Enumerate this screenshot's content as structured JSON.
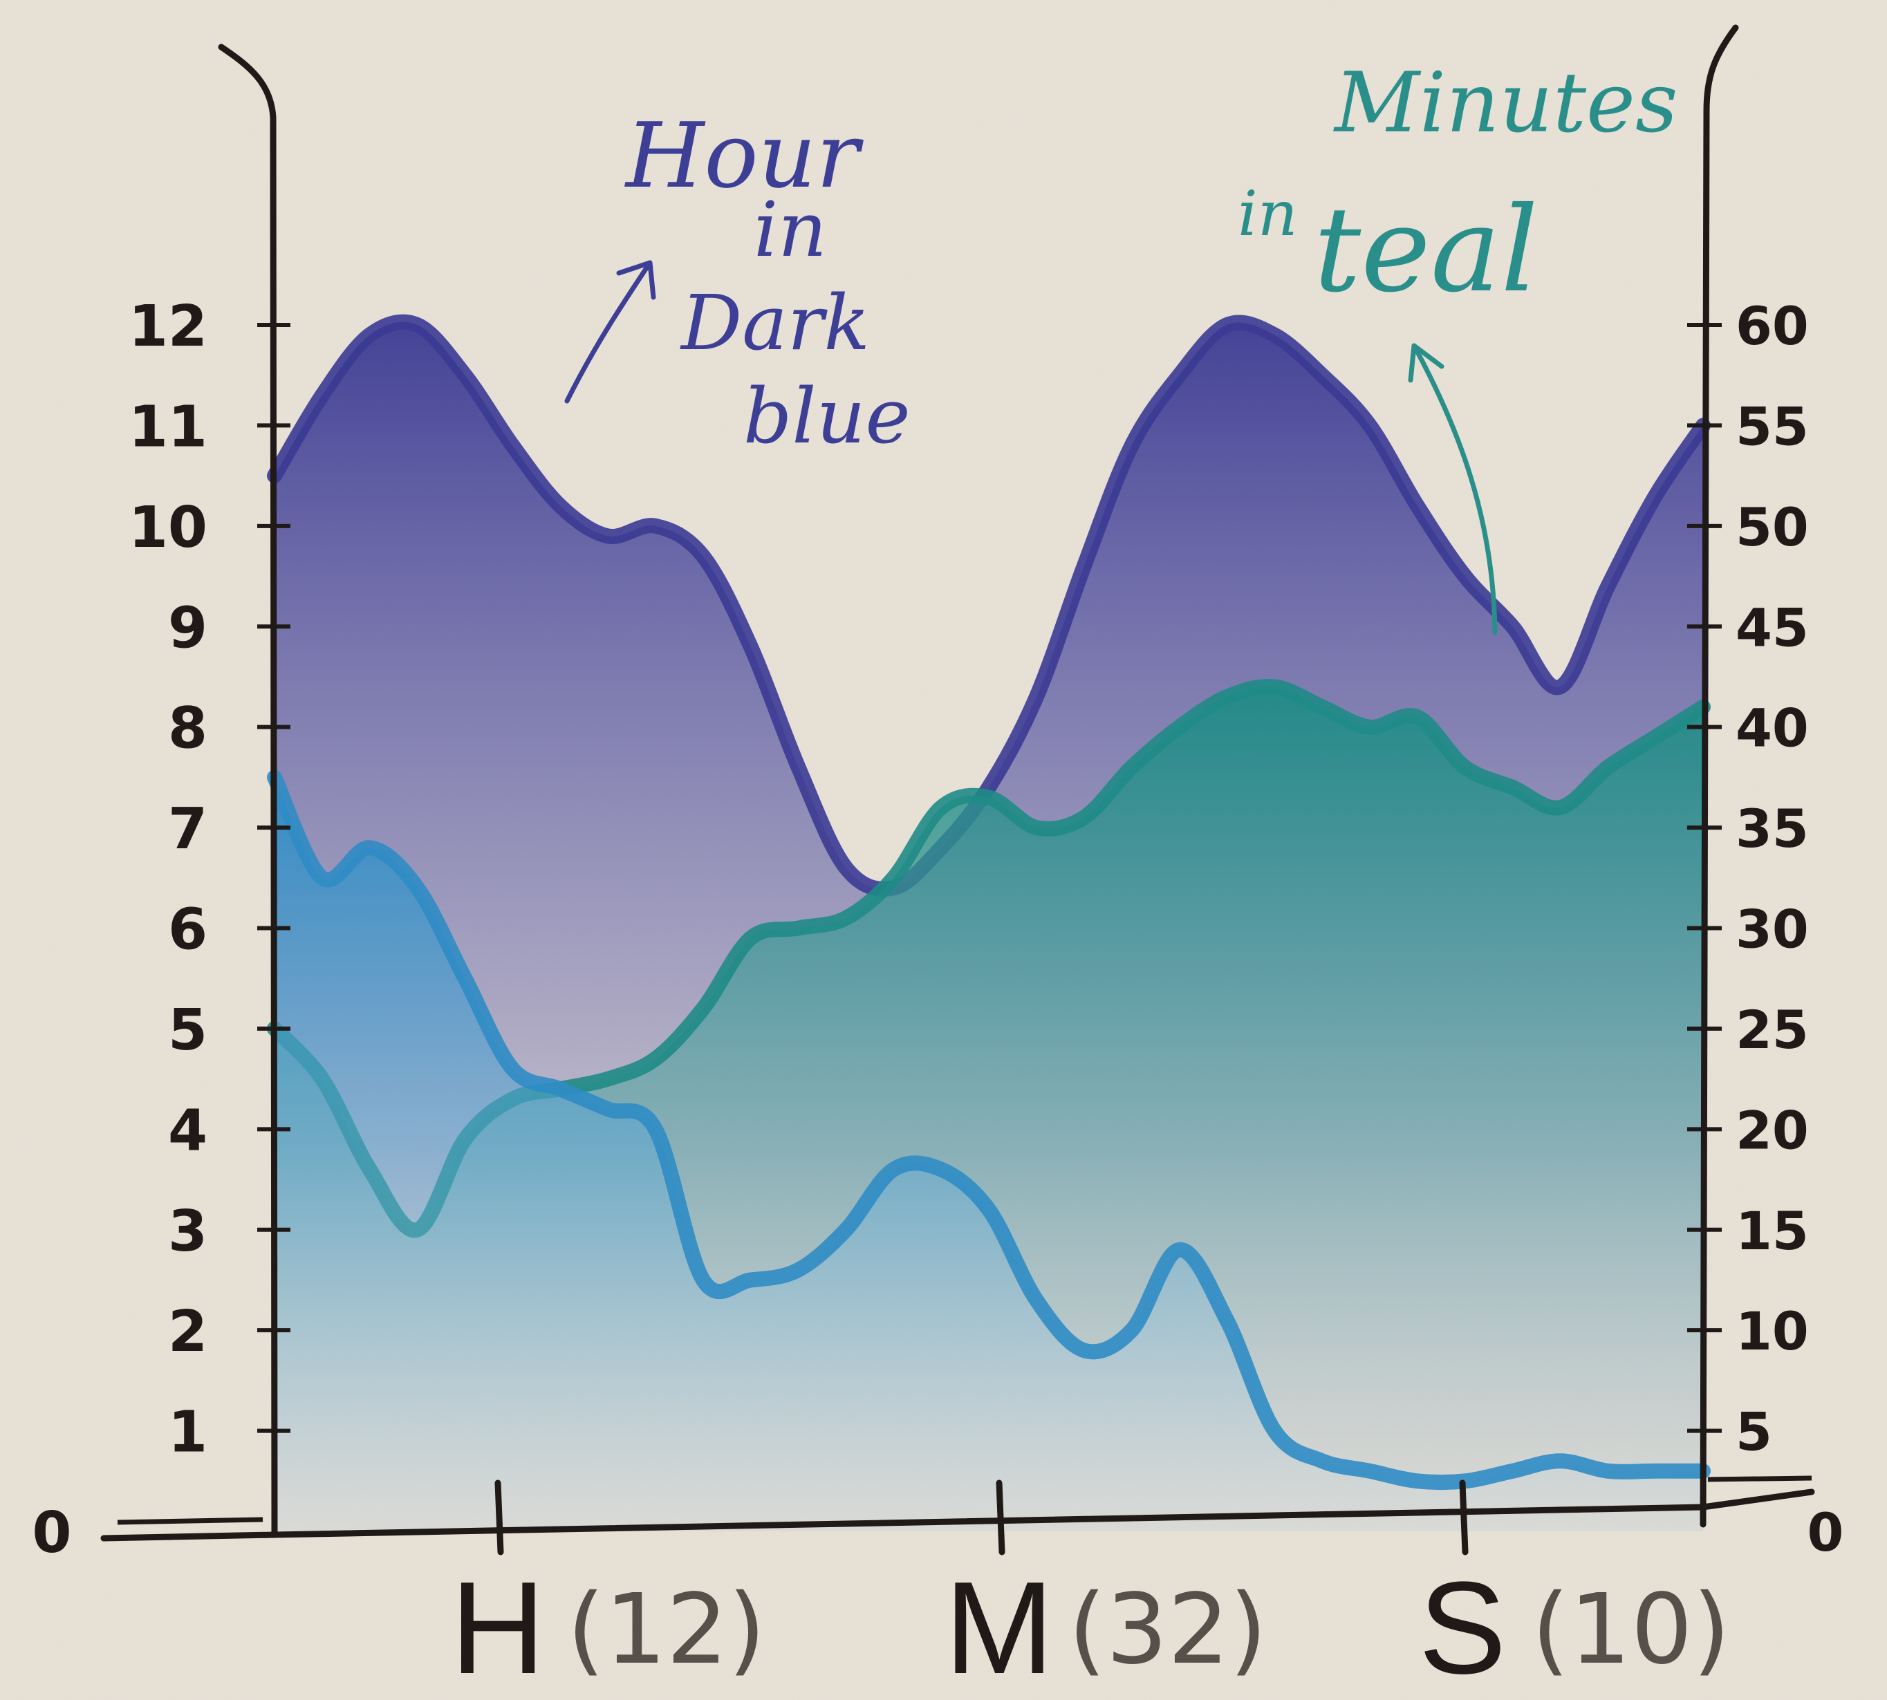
{
  "chart_data": {
    "type": "area",
    "annotations": {
      "hour": [
        "Hour",
        "in",
        "Dark",
        "blue"
      ],
      "minutes": [
        "Minutes",
        "in",
        "teal"
      ]
    },
    "categories": [
      {
        "letter": "H",
        "count": "(12)"
      },
      {
        "letter": "M",
        "count": "(32)"
      },
      {
        "letter": "S",
        "count": "(10)"
      }
    ],
    "left_axis": {
      "ticks": [
        "0",
        "1",
        "2",
        "3",
        "4",
        "5",
        "6",
        "7",
        "8",
        "9",
        "10",
        "11",
        "12"
      ],
      "ylim": [
        0,
        12
      ]
    },
    "right_axis": {
      "ticks": [
        "0",
        "5",
        "10",
        "15",
        "20",
        "25",
        "30",
        "35",
        "40",
        "45",
        "50",
        "55",
        "60"
      ],
      "ylim": [
        0,
        60
      ]
    },
    "x": [
      0.0,
      0.1,
      0.2,
      0.3,
      0.4,
      0.5,
      0.6,
      0.7,
      0.8,
      0.9,
      1.0,
      1.1,
      1.2,
      1.3,
      1.4,
      1.5,
      1.6,
      1.7,
      1.8,
      1.9,
      2.0,
      2.1,
      2.2,
      2.3,
      2.4,
      2.5,
      2.6,
      2.7,
      2.8,
      2.9,
      3.0
    ],
    "xlim": [
      0,
      3
    ],
    "series": [
      {
        "axis": "left",
        "color": "#3b3a93",
        "values": [
          10.5,
          11.3,
          11.9,
          12.0,
          11.5,
          10.8,
          10.2,
          9.9,
          10.0,
          9.7,
          8.8,
          7.6,
          6.6,
          6.4,
          6.8,
          7.4,
          8.3,
          9.6,
          10.8,
          11.5,
          12.0,
          11.9,
          11.5,
          11.0,
          10.2,
          9.5,
          9.0,
          8.4,
          9.4,
          10.3,
          11.0
        ]
      },
      {
        "axis": "left",
        "color": "#1f8b86",
        "values": [
          5.0,
          4.5,
          3.6,
          3.0,
          3.9,
          4.3,
          4.4,
          4.5,
          4.7,
          5.2,
          5.9,
          6.0,
          6.1,
          6.5,
          7.2,
          7.3,
          7.0,
          7.1,
          7.6,
          8.0,
          8.3,
          8.4,
          8.2,
          8.0,
          8.1,
          7.6,
          7.4,
          7.2,
          7.6,
          7.9,
          8.2
        ]
      },
      {
        "axis": "left",
        "color": "#2f8cc4",
        "values": [
          7.5,
          6.5,
          6.8,
          6.4,
          5.5,
          4.6,
          4.4,
          4.2,
          4.0,
          2.5,
          2.5,
          2.6,
          3.0,
          3.6,
          3.6,
          3.2,
          2.3,
          1.8,
          2.0,
          2.8,
          2.1,
          1.0,
          0.7,
          0.6,
          0.5,
          0.5,
          0.6,
          0.7,
          0.6,
          0.6,
          0.6
        ]
      }
    ]
  }
}
